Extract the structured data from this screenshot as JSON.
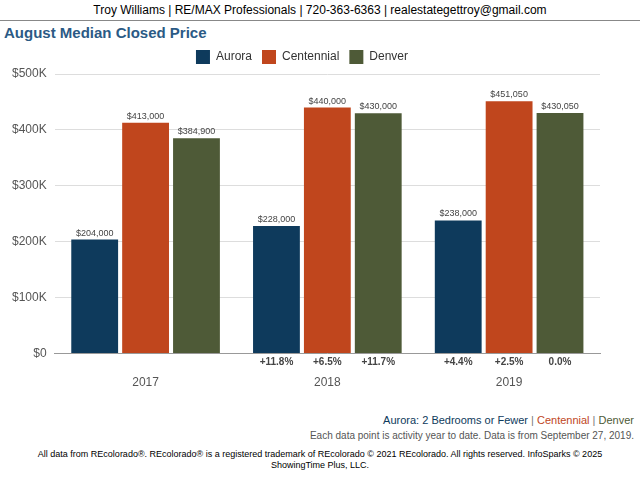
{
  "chart_data": {
    "type": "bar",
    "header": "Troy Williams | RE/MAX Professionals | 720-363-6363 | realestategettroy@gmail.com",
    "title": "August Median Closed Price",
    "categories": [
      "2017",
      "2018",
      "2019"
    ],
    "series": [
      {
        "name": "Aurora",
        "color": "#0e3a5c",
        "values": [
          204000,
          228000,
          238000
        ],
        "value_labels": [
          "$204,000",
          "$228,000",
          "$238,000"
        ],
        "change_labels": [
          null,
          "+11.8%",
          "+4.4%"
        ]
      },
      {
        "name": "Centennial",
        "color": "#c0461d",
        "values": [
          413000,
          440000,
          451050
        ],
        "value_labels": [
          "$413,000",
          "$440,000",
          "$451,050"
        ],
        "change_labels": [
          null,
          "+6.5%",
          "+2.5%"
        ]
      },
      {
        "name": "Denver",
        "color": "#4e5a37",
        "values": [
          384900,
          430000,
          430050
        ],
        "value_labels": [
          "$384,900",
          "$430,000",
          "$430,050"
        ],
        "change_labels": [
          null,
          "+11.7%",
          "0.0%"
        ]
      }
    ],
    "ylim": [
      0,
      500000
    ],
    "yticks": [
      {
        "value": 0,
        "label": "$0"
      },
      {
        "value": 100000,
        "label": "$100K"
      },
      {
        "value": 200000,
        "label": "$200K"
      },
      {
        "value": 300000,
        "label": "$300K"
      },
      {
        "value": 400000,
        "label": "$400K"
      },
      {
        "value": 500000,
        "label": "$500K"
      }
    ],
    "grid": true,
    "legend": "top",
    "data_labels": true,
    "caption": [
      "Aurora: 2 Bedrooms or Fewer",
      "Centennial",
      "Denver"
    ],
    "note": "Each data point is activity year to date. Data is from September 27, 2019.",
    "footer": "All data from REcolorado®. REcolorado® is a registered trademark of REcolorado © 2021 REcolorado. All rights reserved. InfoSparks © 2025 ShowingTime Plus, LLC."
  }
}
